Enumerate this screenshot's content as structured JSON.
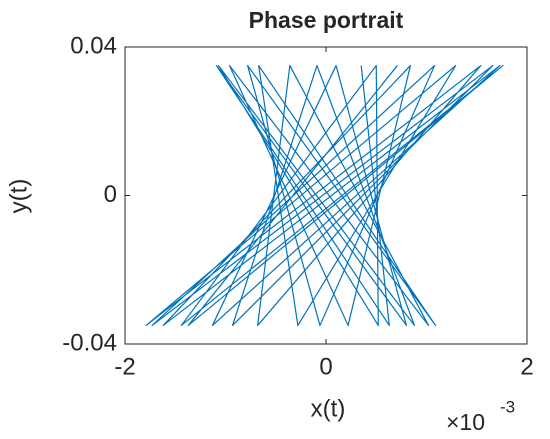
{
  "chart_data": {
    "type": "line",
    "title": "Phase portrait",
    "xlabel": "x(t)",
    "ylabel": "y(t)",
    "x_multiplier": {
      "base": "×10",
      "exponent": "-3"
    },
    "color": "#0072bd",
    "x": [
      0.00035,
      0.00063,
      -0.00109,
      0.0008,
      0.0001,
      -0.00113,
      0.00173,
      -0.00162,
      0.00084,
      0.00022,
      -0.00096,
      0.00102,
      -0.00036,
      -0.00068,
      0.00154,
      -0.00179,
      0.00129,
      -0.00028,
      -0.00067,
      0.00109,
      -0.00078,
      -6e-05,
      0.00108,
      -0.00173,
      0.00166,
      -0.00093,
      -9e-05,
      0.00088,
      -0.00107,
      0.00052,
      0.0005,
      -0.00144,
      0.00176,
      -0.00137,
      0.00071
    ],
    "values": [
      0.035,
      -0.035,
      0.035,
      -0.035,
      0.035,
      -0.035,
      0.035,
      -0.035,
      0.035,
      -0.035,
      0.035,
      -0.035,
      0.035,
      -0.035,
      0.035,
      -0.035,
      0.035,
      -0.035,
      0.035,
      -0.035,
      0.035,
      -0.035,
      0.035,
      -0.035,
      0.035,
      -0.035,
      0.035,
      -0.035,
      0.035,
      -0.035,
      0.035,
      -0.035,
      0.035,
      -0.035,
      0.035
    ],
    "xlim": [
      -0.002,
      0.002
    ],
    "xticks": [
      {
        "value": -0.002,
        "label": "-2"
      },
      0,
      {
        "value": 0.002,
        "label": "2"
      }
    ],
    "ylim": [
      -0.04,
      0.04
    ],
    "yticks": [
      -0.04,
      0,
      0.04
    ]
  }
}
